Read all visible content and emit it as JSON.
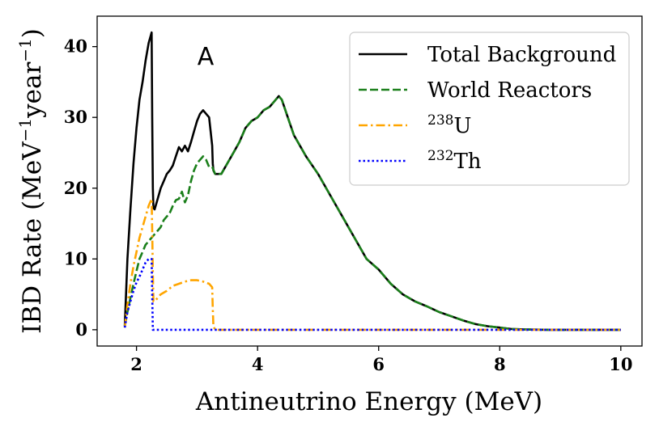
{
  "chart_data": {
    "type": "line",
    "panel_label": "A",
    "xlabel": "Antineutrino Energy (MeV)",
    "ylabel": {
      "prefix": "IBD Rate (MeV",
      "exp1": "−1",
      "mid": "year",
      "exp2": "−1",
      "suffix": ")"
    },
    "xlim": [
      1.35,
      10.35
    ],
    "ylim": [
      -2.3,
      44.3
    ],
    "xticks": [
      2,
      4,
      6,
      8,
      10
    ],
    "xtick_labels": [
      "2",
      "4",
      "6",
      "8",
      "10"
    ],
    "yticks": [
      0,
      10,
      20,
      30,
      40
    ],
    "ytick_labels": [
      "0",
      "10",
      "20",
      "30",
      "40"
    ],
    "legend_position": "top-right",
    "series": [
      {
        "name": "Total Background",
        "label": {
          "sup": "",
          "text": "Total Background"
        },
        "color": "#000000",
        "style": "solid",
        "x": [
          1.806,
          1.85,
          1.9,
          1.95,
          2.0,
          2.05,
          2.1,
          2.15,
          2.2,
          2.25,
          2.26,
          2.27,
          2.28,
          2.3,
          2.35,
          2.4,
          2.45,
          2.5,
          2.55,
          2.6,
          2.65,
          2.7,
          2.75,
          2.8,
          2.85,
          2.9,
          2.95,
          3.0,
          3.05,
          3.1,
          3.15,
          3.2,
          3.25,
          3.26,
          3.27,
          3.3,
          3.4,
          3.5,
          3.6,
          3.7,
          3.8,
          3.9,
          4.0,
          4.1,
          4.2,
          4.3,
          4.35,
          4.4,
          4.5,
          4.6,
          4.7,
          4.8,
          5.0,
          5.2,
          5.4,
          5.6,
          5.8,
          6.0,
          6.2,
          6.4,
          6.6,
          6.8,
          7.0,
          7.2,
          7.4,
          7.6,
          7.8,
          8.0,
          8.2,
          8.4,
          8.6,
          8.8,
          9.0,
          9.5,
          10.0
        ],
        "y": [
          0.5,
          10.0,
          17.0,
          23.5,
          28.5,
          32.5,
          35.0,
          38.0,
          40.5,
          42.0,
          30.0,
          20.0,
          17.2,
          17.0,
          18.5,
          20.0,
          21.0,
          22.0,
          22.5,
          23.2,
          24.5,
          25.8,
          25.2,
          26.0,
          25.2,
          26.5,
          28.0,
          29.5,
          30.5,
          31.0,
          30.5,
          30.0,
          26.0,
          23.5,
          22.5,
          22.0,
          22.0,
          23.5,
          25.0,
          26.5,
          28.5,
          29.5,
          30.0,
          31.0,
          31.5,
          32.5,
          33.0,
          32.5,
          30.0,
          27.5,
          26.0,
          24.5,
          22.0,
          19.0,
          16.0,
          13.0,
          10.0,
          8.5,
          6.5,
          5.0,
          4.0,
          3.3,
          2.5,
          1.9,
          1.3,
          0.8,
          0.5,
          0.3,
          0.1,
          0.05,
          0.02,
          0.0,
          0.0,
          0.0,
          0.0
        ]
      },
      {
        "name": "World Reactors",
        "label": {
          "sup": "",
          "text": "World Reactors"
        },
        "color": "#1a7f1a",
        "style": "dashed",
        "x": [
          1.806,
          1.85,
          1.9,
          1.95,
          2.0,
          2.05,
          2.1,
          2.15,
          2.2,
          2.25,
          2.3,
          2.35,
          2.4,
          2.45,
          2.5,
          2.55,
          2.6,
          2.65,
          2.7,
          2.75,
          2.8,
          2.85,
          2.9,
          2.95,
          3.0,
          3.05,
          3.1,
          3.15,
          3.2,
          3.25,
          3.3,
          3.4,
          3.5,
          3.6,
          3.7,
          3.8,
          3.9,
          4.0,
          4.1,
          4.2,
          4.3,
          4.35,
          4.4,
          4.5,
          4.6,
          4.7,
          4.8,
          5.0,
          5.2,
          5.4,
          5.6,
          5.8,
          6.0,
          6.2,
          6.4,
          6.6,
          6.8,
          7.0,
          7.2,
          7.4,
          7.6,
          7.8,
          8.0,
          8.2,
          8.4,
          8.6,
          8.8,
          9.0,
          9.5,
          10.0
        ],
        "y": [
          0.5,
          2.5,
          4.5,
          6.5,
          8.3,
          10.0,
          11.0,
          12.0,
          12.5,
          13.0,
          13.5,
          14.0,
          14.5,
          15.5,
          16.0,
          16.5,
          17.5,
          18.3,
          18.5,
          19.5,
          18.0,
          19.0,
          21.0,
          22.5,
          23.5,
          24.0,
          24.5,
          24.0,
          23.0,
          23.0,
          22.0,
          22.0,
          23.5,
          25.0,
          26.5,
          28.5,
          29.5,
          30.0,
          31.0,
          31.5,
          32.5,
          33.0,
          32.5,
          30.0,
          27.5,
          26.0,
          24.5,
          22.0,
          19.0,
          16.0,
          13.0,
          10.0,
          8.5,
          6.5,
          5.0,
          4.0,
          3.3,
          2.5,
          1.9,
          1.3,
          0.8,
          0.5,
          0.3,
          0.1,
          0.05,
          0.02,
          0.0,
          0.0,
          0.0,
          0.0
        ]
      },
      {
        "name": "238U",
        "label": {
          "sup": "238",
          "text": "U"
        },
        "color": "#ffa500",
        "style": "dashdot",
        "x": [
          1.806,
          1.85,
          1.9,
          1.95,
          2.0,
          2.05,
          2.1,
          2.15,
          2.2,
          2.25,
          2.26,
          2.27,
          2.28,
          2.3,
          2.4,
          2.5,
          2.6,
          2.7,
          2.8,
          2.9,
          3.0,
          3.1,
          3.2,
          3.25,
          3.26,
          3.27,
          3.3,
          4.0,
          6.0,
          8.0,
          10.0
        ],
        "y": [
          0.3,
          3.5,
          6.5,
          9.0,
          11.0,
          13.0,
          14.5,
          16.0,
          17.5,
          18.5,
          14.0,
          8.0,
          4.0,
          4.0,
          5.0,
          5.5,
          6.2,
          6.5,
          6.8,
          7.0,
          7.0,
          6.8,
          6.5,
          6.0,
          3.0,
          0.5,
          0.0,
          0.0,
          0.0,
          0.0,
          0.0
        ]
      },
      {
        "name": "232Th",
        "label": {
          "sup": "232",
          "text": "Th"
        },
        "color": "#0000ff",
        "style": "dotted",
        "x": [
          1.806,
          1.85,
          1.9,
          1.95,
          2.0,
          2.05,
          2.1,
          2.15,
          2.2,
          2.25,
          2.26,
          2.27,
          2.3,
          4.0,
          6.0,
          8.0,
          10.0
        ],
        "y": [
          0.3,
          2.5,
          4.0,
          5.5,
          6.7,
          7.5,
          8.5,
          9.5,
          10.0,
          10.0,
          5.0,
          0.0,
          0.0,
          0.0,
          0.0,
          0.0,
          0.0
        ]
      }
    ]
  }
}
